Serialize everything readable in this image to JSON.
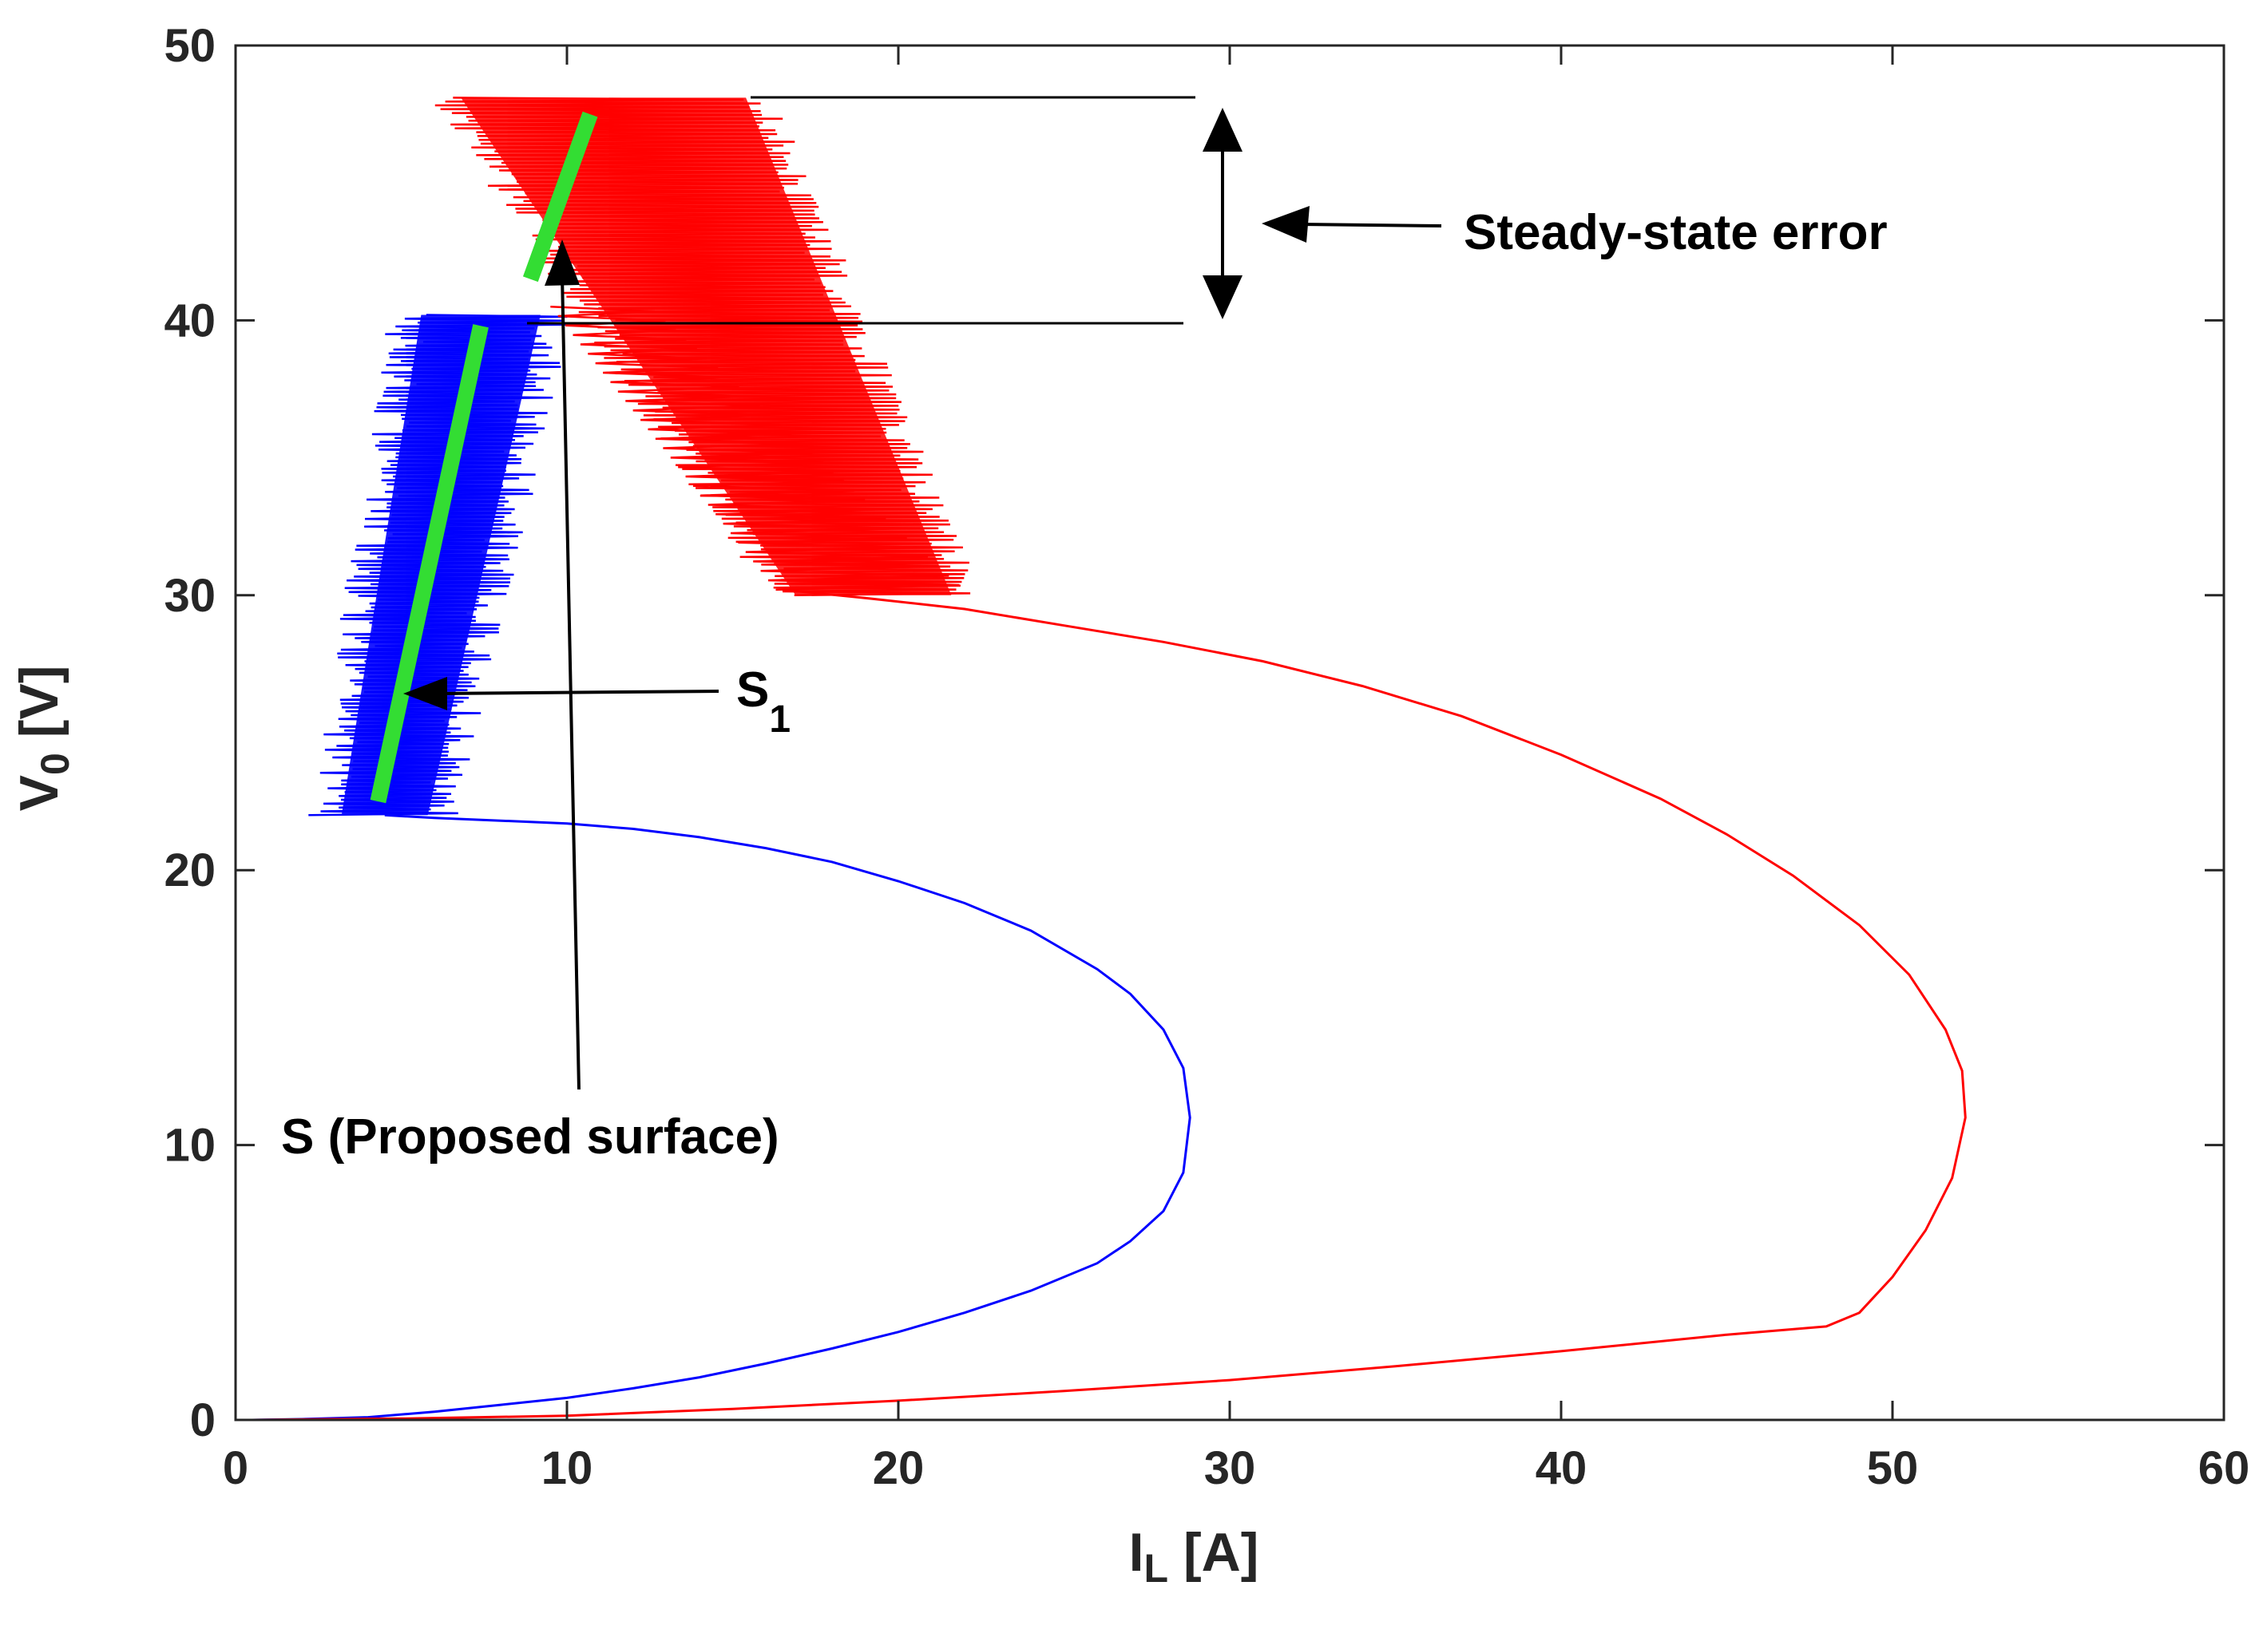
{
  "chart_data": {
    "type": "line",
    "xlabel": "I",
    "xlabel_sub": "L",
    "xlabel_unit": " [A]",
    "ylabel": "V",
    "ylabel_sub": "0",
    "ylabel_unit": " [V]",
    "xlim": [
      0,
      60
    ],
    "ylim": [
      0,
      50
    ],
    "xticks": [
      0,
      10,
      20,
      30,
      40,
      50,
      60
    ],
    "yticks": [
      0,
      10,
      20,
      30,
      40,
      50
    ],
    "grid": false,
    "legend": "none",
    "colors": {
      "blue": "#0000ff",
      "red": "#ff0000",
      "green": "#33dd33",
      "axes": "#262626"
    },
    "series": [
      {
        "color": "#0000ff",
        "points": [
          [
            0.5,
            0
          ],
          [
            2,
            0.03
          ],
          [
            4,
            0.1
          ],
          [
            6,
            0.3
          ],
          [
            8,
            0.55
          ],
          [
            10,
            0.8
          ],
          [
            12,
            1.15
          ],
          [
            14,
            1.55
          ],
          [
            16,
            2.05
          ],
          [
            18,
            2.6
          ],
          [
            20,
            3.2
          ],
          [
            22,
            3.9
          ],
          [
            24,
            4.7
          ],
          [
            26,
            5.7
          ],
          [
            27,
            6.5
          ],
          [
            28,
            7.6
          ],
          [
            28.6,
            9
          ],
          [
            28.8,
            11
          ],
          [
            28.6,
            12.8
          ],
          [
            28,
            14.2
          ],
          [
            27,
            15.5
          ],
          [
            26,
            16.4
          ],
          [
            24,
            17.8
          ],
          [
            22,
            18.8
          ],
          [
            20,
            19.6
          ],
          [
            18,
            20.3
          ],
          [
            16,
            20.8
          ],
          [
            14,
            21.2
          ],
          [
            12,
            21.5
          ],
          [
            10,
            21.7
          ],
          [
            8,
            21.8
          ],
          [
            6,
            21.9
          ],
          [
            4.5,
            22
          ]
        ],
        "band": {
          "bottom": [
            [
              2.8,
              22
            ],
            [
              6.2,
              22
            ]
          ],
          "top": [
            [
              5.2,
              40.2
            ],
            [
              9.6,
              40.2
            ]
          ]
        }
      },
      {
        "color": "#ff0000",
        "points": [
          [
            0.5,
            0
          ],
          [
            5,
            0.05
          ],
          [
            10,
            0.15
          ],
          [
            15,
            0.4
          ],
          [
            20,
            0.7
          ],
          [
            25,
            1.05
          ],
          [
            30,
            1.45
          ],
          [
            35,
            1.95
          ],
          [
            40,
            2.5
          ],
          [
            45,
            3.1
          ],
          [
            48,
            3.4
          ],
          [
            49,
            3.9
          ],
          [
            50,
            5.2
          ],
          [
            51,
            6.9
          ],
          [
            51.8,
            8.8
          ],
          [
            52.2,
            11
          ],
          [
            52.1,
            12.7
          ],
          [
            51.6,
            14.2
          ],
          [
            50.5,
            16.2
          ],
          [
            49,
            18
          ],
          [
            47,
            19.8
          ],
          [
            45,
            21.3
          ],
          [
            43,
            22.6
          ],
          [
            40,
            24.2
          ],
          [
            37,
            25.6
          ],
          [
            34,
            26.7
          ],
          [
            31,
            27.6
          ],
          [
            28,
            28.3
          ],
          [
            25,
            28.9
          ],
          [
            22,
            29.5
          ],
          [
            19,
            29.9
          ],
          [
            16.5,
            30.2
          ]
        ],
        "band": {
          "bottom": [
            [
              16.5,
              30
            ],
            [
              22,
              30
            ]
          ],
          "top": [
            [
              6.4,
              48.1
            ],
            [
              15.8,
              48.1
            ]
          ]
        }
      }
    ],
    "surfaces": [
      {
        "name": "S",
        "color": "#33dd33",
        "from": [
          4.3,
          22.5
        ],
        "to": [
          7.4,
          39.8
        ]
      },
      {
        "name": "S1",
        "color": "#33dd33",
        "from": [
          8.9,
          41.5
        ],
        "to": [
          10.7,
          47.5
        ]
      }
    ],
    "annotations": {
      "steady_state": "Steady-state error",
      "s1_main": "S",
      "s1_sub": "1",
      "s_proposed": "S (Proposed surface)"
    }
  }
}
